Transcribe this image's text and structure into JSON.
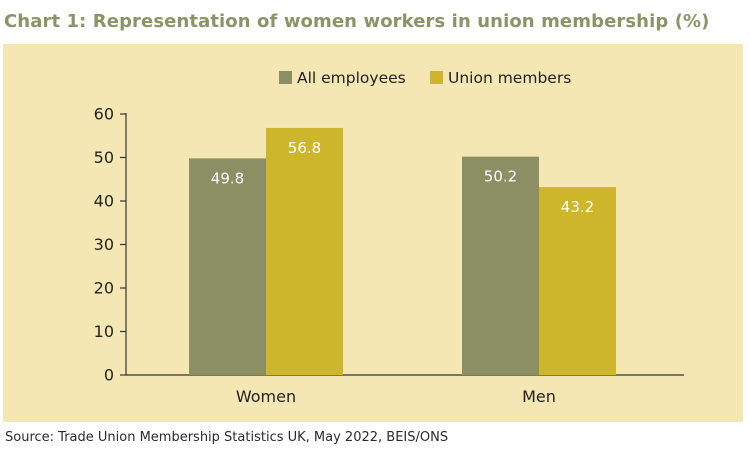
{
  "title": "Chart 1: Representation of women workers in union membership (%)",
  "source": "Source: Trade Union Membership Statistics UK, May 2022, BEIS/ONS",
  "chart_data": {
    "type": "bar",
    "categories": [
      "Women",
      "Men"
    ],
    "series": [
      {
        "name": "All employees",
        "values": [
          49.8,
          50.2
        ],
        "color": "#8c8f64"
      },
      {
        "name": "Union members",
        "values": [
          56.8,
          43.2
        ],
        "color": "#cdb62c"
      }
    ],
    "ylim": [
      0,
      60
    ],
    "yticks": [
      "0",
      "10",
      "20",
      "30",
      "40",
      "50",
      "60"
    ],
    "data_labels": [
      [
        "49.8",
        "50.2"
      ],
      [
        "56.8",
        "43.2"
      ]
    ],
    "legend": "top",
    "grid": false,
    "background": "#f5e7b3"
  }
}
